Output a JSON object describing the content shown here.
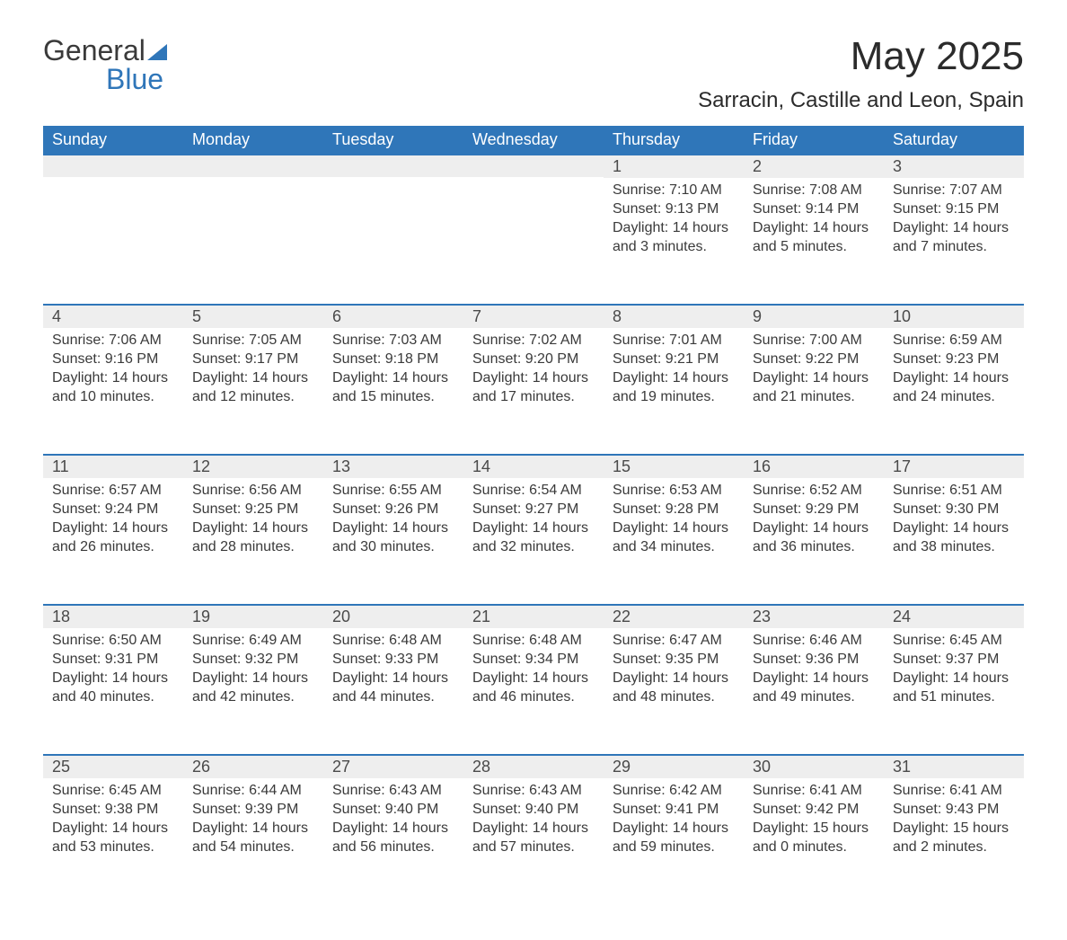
{
  "logo": {
    "main": "General",
    "sub": "Blue"
  },
  "title": "May 2025",
  "subtitle": "Sarracin, Castille and Leon, Spain",
  "colors": {
    "accent": "#2f76b9",
    "header_bg": "#2f76b9",
    "header_text": "#ffffff",
    "daynum_bg": "#eeeeee",
    "text": "#3a3a3a",
    "background": "#ffffff"
  },
  "calendar": {
    "days_of_week": [
      "Sunday",
      "Monday",
      "Tuesday",
      "Wednesday",
      "Thursday",
      "Friday",
      "Saturday"
    ],
    "weeks": [
      [
        null,
        null,
        null,
        null,
        {
          "n": "1",
          "sunrise": "7:10 AM",
          "sunset": "9:13 PM",
          "dl_h": "14",
          "dl_m": "3"
        },
        {
          "n": "2",
          "sunrise": "7:08 AM",
          "sunset": "9:14 PM",
          "dl_h": "14",
          "dl_m": "5"
        },
        {
          "n": "3",
          "sunrise": "7:07 AM",
          "sunset": "9:15 PM",
          "dl_h": "14",
          "dl_m": "7"
        }
      ],
      [
        {
          "n": "4",
          "sunrise": "7:06 AM",
          "sunset": "9:16 PM",
          "dl_h": "14",
          "dl_m": "10"
        },
        {
          "n": "5",
          "sunrise": "7:05 AM",
          "sunset": "9:17 PM",
          "dl_h": "14",
          "dl_m": "12"
        },
        {
          "n": "6",
          "sunrise": "7:03 AM",
          "sunset": "9:18 PM",
          "dl_h": "14",
          "dl_m": "15"
        },
        {
          "n": "7",
          "sunrise": "7:02 AM",
          "sunset": "9:20 PM",
          "dl_h": "14",
          "dl_m": "17"
        },
        {
          "n": "8",
          "sunrise": "7:01 AM",
          "sunset": "9:21 PM",
          "dl_h": "14",
          "dl_m": "19"
        },
        {
          "n": "9",
          "sunrise": "7:00 AM",
          "sunset": "9:22 PM",
          "dl_h": "14",
          "dl_m": "21"
        },
        {
          "n": "10",
          "sunrise": "6:59 AM",
          "sunset": "9:23 PM",
          "dl_h": "14",
          "dl_m": "24"
        }
      ],
      [
        {
          "n": "11",
          "sunrise": "6:57 AM",
          "sunset": "9:24 PM",
          "dl_h": "14",
          "dl_m": "26"
        },
        {
          "n": "12",
          "sunrise": "6:56 AM",
          "sunset": "9:25 PM",
          "dl_h": "14",
          "dl_m": "28"
        },
        {
          "n": "13",
          "sunrise": "6:55 AM",
          "sunset": "9:26 PM",
          "dl_h": "14",
          "dl_m": "30"
        },
        {
          "n": "14",
          "sunrise": "6:54 AM",
          "sunset": "9:27 PM",
          "dl_h": "14",
          "dl_m": "32"
        },
        {
          "n": "15",
          "sunrise": "6:53 AM",
          "sunset": "9:28 PM",
          "dl_h": "14",
          "dl_m": "34"
        },
        {
          "n": "16",
          "sunrise": "6:52 AM",
          "sunset": "9:29 PM",
          "dl_h": "14",
          "dl_m": "36"
        },
        {
          "n": "17",
          "sunrise": "6:51 AM",
          "sunset": "9:30 PM",
          "dl_h": "14",
          "dl_m": "38"
        }
      ],
      [
        {
          "n": "18",
          "sunrise": "6:50 AM",
          "sunset": "9:31 PM",
          "dl_h": "14",
          "dl_m": "40"
        },
        {
          "n": "19",
          "sunrise": "6:49 AM",
          "sunset": "9:32 PM",
          "dl_h": "14",
          "dl_m": "42"
        },
        {
          "n": "20",
          "sunrise": "6:48 AM",
          "sunset": "9:33 PM",
          "dl_h": "14",
          "dl_m": "44"
        },
        {
          "n": "21",
          "sunrise": "6:48 AM",
          "sunset": "9:34 PM",
          "dl_h": "14",
          "dl_m": "46"
        },
        {
          "n": "22",
          "sunrise": "6:47 AM",
          "sunset": "9:35 PM",
          "dl_h": "14",
          "dl_m": "48"
        },
        {
          "n": "23",
          "sunrise": "6:46 AM",
          "sunset": "9:36 PM",
          "dl_h": "14",
          "dl_m": "49"
        },
        {
          "n": "24",
          "sunrise": "6:45 AM",
          "sunset": "9:37 PM",
          "dl_h": "14",
          "dl_m": "51"
        }
      ],
      [
        {
          "n": "25",
          "sunrise": "6:45 AM",
          "sunset": "9:38 PM",
          "dl_h": "14",
          "dl_m": "53"
        },
        {
          "n": "26",
          "sunrise": "6:44 AM",
          "sunset": "9:39 PM",
          "dl_h": "14",
          "dl_m": "54"
        },
        {
          "n": "27",
          "sunrise": "6:43 AM",
          "sunset": "9:40 PM",
          "dl_h": "14",
          "dl_m": "56"
        },
        {
          "n": "28",
          "sunrise": "6:43 AM",
          "sunset": "9:40 PM",
          "dl_h": "14",
          "dl_m": "57"
        },
        {
          "n": "29",
          "sunrise": "6:42 AM",
          "sunset": "9:41 PM",
          "dl_h": "14",
          "dl_m": "59"
        },
        {
          "n": "30",
          "sunrise": "6:41 AM",
          "sunset": "9:42 PM",
          "dl_h": "15",
          "dl_m": "0"
        },
        {
          "n": "31",
          "sunrise": "6:41 AM",
          "sunset": "9:43 PM",
          "dl_h": "15",
          "dl_m": "2"
        }
      ]
    ],
    "labels": {
      "sunrise": "Sunrise: ",
      "sunset": "Sunset: ",
      "daylight_pre": "Daylight: ",
      "daylight_mid": " hours and ",
      "daylight_post": " minutes."
    }
  }
}
